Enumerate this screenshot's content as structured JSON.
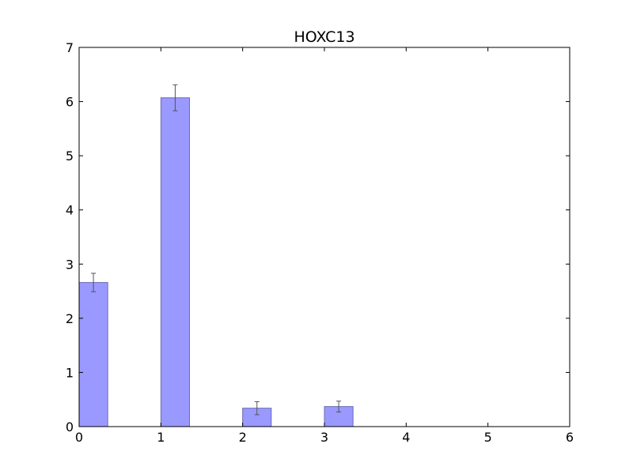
{
  "chart_data": {
    "type": "bar",
    "title": "HOXC13",
    "xlabel": "",
    "ylabel": "",
    "xlim": [
      0,
      6
    ],
    "ylim": [
      0,
      7
    ],
    "x_ticks": [
      0,
      1,
      2,
      3,
      4,
      5,
      6
    ],
    "y_ticks": [
      0,
      1,
      2,
      3,
      4,
      5,
      6,
      7
    ],
    "bar_width": 0.35,
    "grid": false,
    "bar_color": "#9999ff",
    "bar_edge_color": "#6b6bb0",
    "error_color": "#555555",
    "bars": [
      {
        "x": 0,
        "value": 2.66,
        "error": 0.17
      },
      {
        "x": 1,
        "value": 6.07,
        "error": 0.24
      },
      {
        "x": 2,
        "value": 0.34,
        "error": 0.12
      },
      {
        "x": 3,
        "value": 0.37,
        "error": 0.1
      }
    ]
  }
}
